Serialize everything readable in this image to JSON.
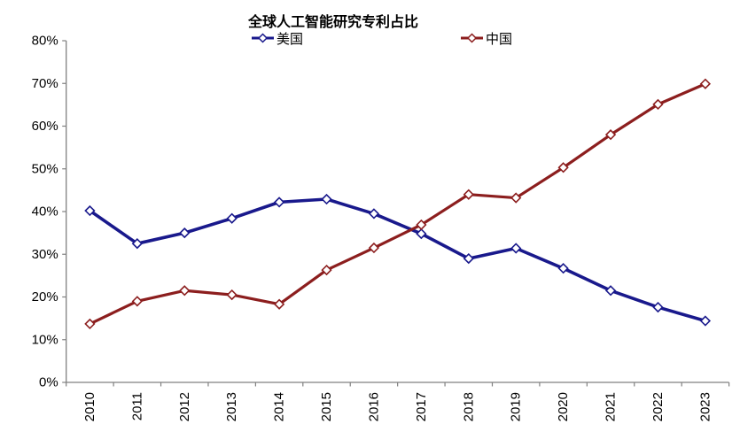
{
  "chart_data": {
    "type": "line",
    "title": "全球人工智能研究专利占比",
    "categories": [
      "2010",
      "2011",
      "2012",
      "2013",
      "2014",
      "2015",
      "2016",
      "2017",
      "2018",
      "2019",
      "2020",
      "2021",
      "2022",
      "2023"
    ],
    "series": [
      {
        "name": "美国",
        "color": "#19198C",
        "line_width": 3.6,
        "values": [
          40.2,
          32.5,
          35.0,
          38.4,
          42.2,
          42.9,
          39.5,
          34.8,
          29.0,
          31.4,
          26.7,
          21.5,
          17.6,
          14.4
        ]
      },
      {
        "name": "中国",
        "color": "#8C1E1E",
        "line_width": 3.2,
        "values": [
          13.7,
          19.0,
          21.5,
          20.5,
          18.3,
          26.3,
          31.5,
          36.9,
          44.0,
          43.2,
          50.3,
          58.0,
          65.1,
          69.9
        ]
      }
    ],
    "ylim": [
      0,
      80
    ],
    "ytick_step": 10,
    "ytick_suffix": "%",
    "marker": "hollow-diamond",
    "grid": false,
    "legend_position": "top",
    "axis_color": "#808080",
    "text_color": "#000000"
  }
}
